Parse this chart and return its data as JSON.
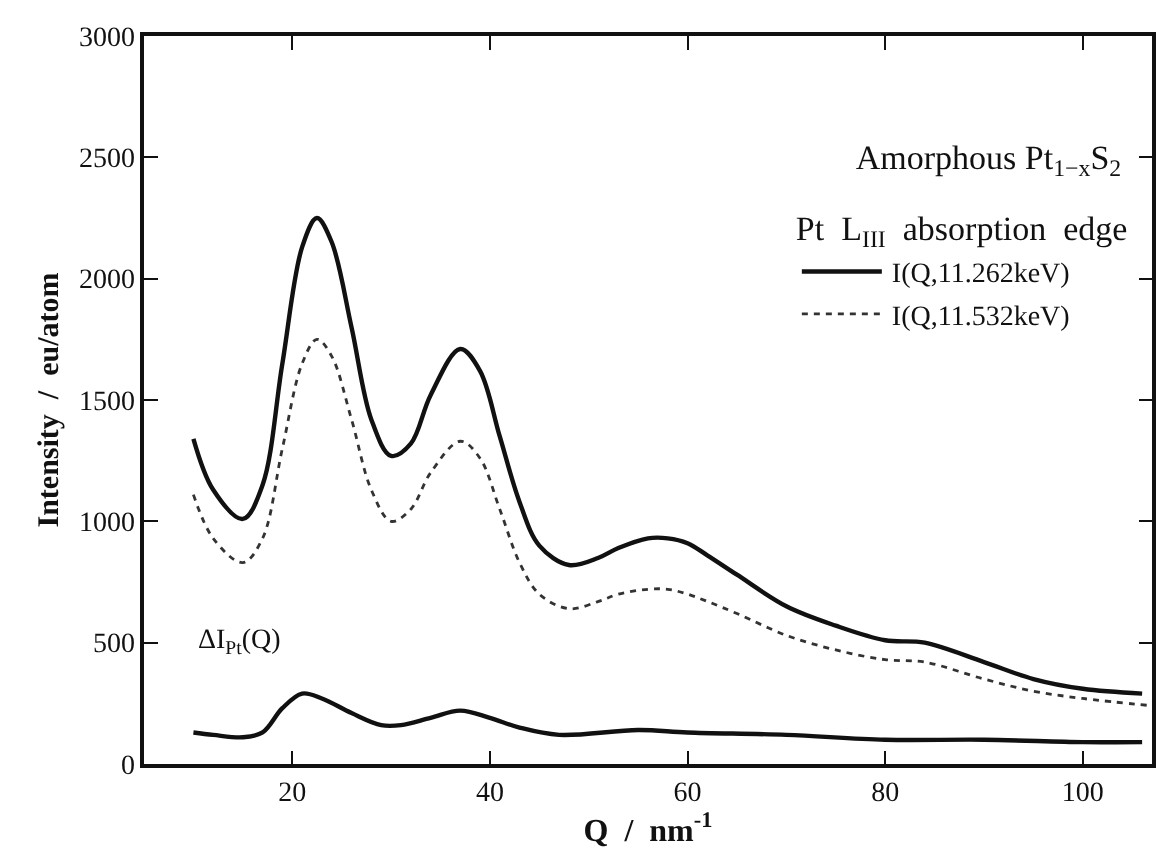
{
  "chart_data": {
    "type": "line",
    "title": "Amorphous Pt$_{1−x}$S$_{2}$",
    "xlabel": "Q  /  nm$^{-1}$",
    "ylabel": "Intensity  /  eu/atom",
    "legend_title": "Pt  L$_{III}$  absorption  edge",
    "legend": "top right",
    "marker": "none",
    "xlim": [
      5,
      107
    ],
    "xticks": [
      20,
      40,
      60,
      80,
      100
    ],
    "ylim": [
      0,
      3000
    ],
    "yticks": [
      0,
      500,
      1000,
      1500,
      2000,
      2500,
      3000
    ],
    "series": [
      {
        "name": "I(Q,11.262keV)",
        "color": "#111111",
        "line_style": "solid",
        "x": [
          10,
          12,
          15,
          17,
          19,
          21,
          22.5,
          24,
          26,
          28,
          30,
          32,
          34,
          37,
          39,
          41,
          43,
          45,
          48,
          51,
          53,
          56,
          58,
          60,
          62,
          65,
          70,
          75,
          80,
          84,
          90,
          95,
          100,
          106
        ],
        "values": [
          1340,
          1130,
          1010,
          1150,
          1650,
          2130,
          2250,
          2150,
          1800,
          1420,
          1270,
          1320,
          1520,
          1710,
          1620,
          1350,
          1080,
          900,
          820,
          850,
          890,
          930,
          930,
          910,
          860,
          780,
          650,
          570,
          510,
          500,
          420,
          350,
          310,
          290
        ]
      },
      {
        "name": "I(Q,11.532keV)",
        "color": "#333333",
        "line_style": "dotted",
        "x": [
          10,
          12,
          15,
          17,
          19,
          21,
          22.5,
          24,
          26,
          28,
          30,
          32,
          34,
          37,
          39,
          41,
          43,
          45,
          48,
          51,
          53,
          56,
          58,
          60,
          62,
          65,
          70,
          75,
          80,
          84,
          90,
          95,
          100,
          107
        ],
        "values": [
          1110,
          930,
          830,
          930,
          1300,
          1650,
          1750,
          1680,
          1420,
          1130,
          1000,
          1050,
          1200,
          1330,
          1260,
          1050,
          830,
          700,
          640,
          670,
          700,
          720,
          720,
          700,
          670,
          620,
          530,
          470,
          430,
          420,
          350,
          300,
          270,
          240
        ]
      },
      {
        "name": "ΔI$_{Pt}$(Q)",
        "color": "#111111",
        "line_style": "solid",
        "x": [
          10,
          12,
          15,
          17,
          19,
          21,
          23,
          26,
          29,
          31,
          34,
          37,
          40,
          43,
          47,
          55,
          60,
          70,
          80,
          90,
          100,
          106
        ],
        "values": [
          130,
          120,
          110,
          130,
          230,
          290,
          270,
          210,
          160,
          160,
          190,
          220,
          190,
          150,
          120,
          140,
          130,
          120,
          100,
          100,
          90,
          90
        ]
      }
    ]
  }
}
